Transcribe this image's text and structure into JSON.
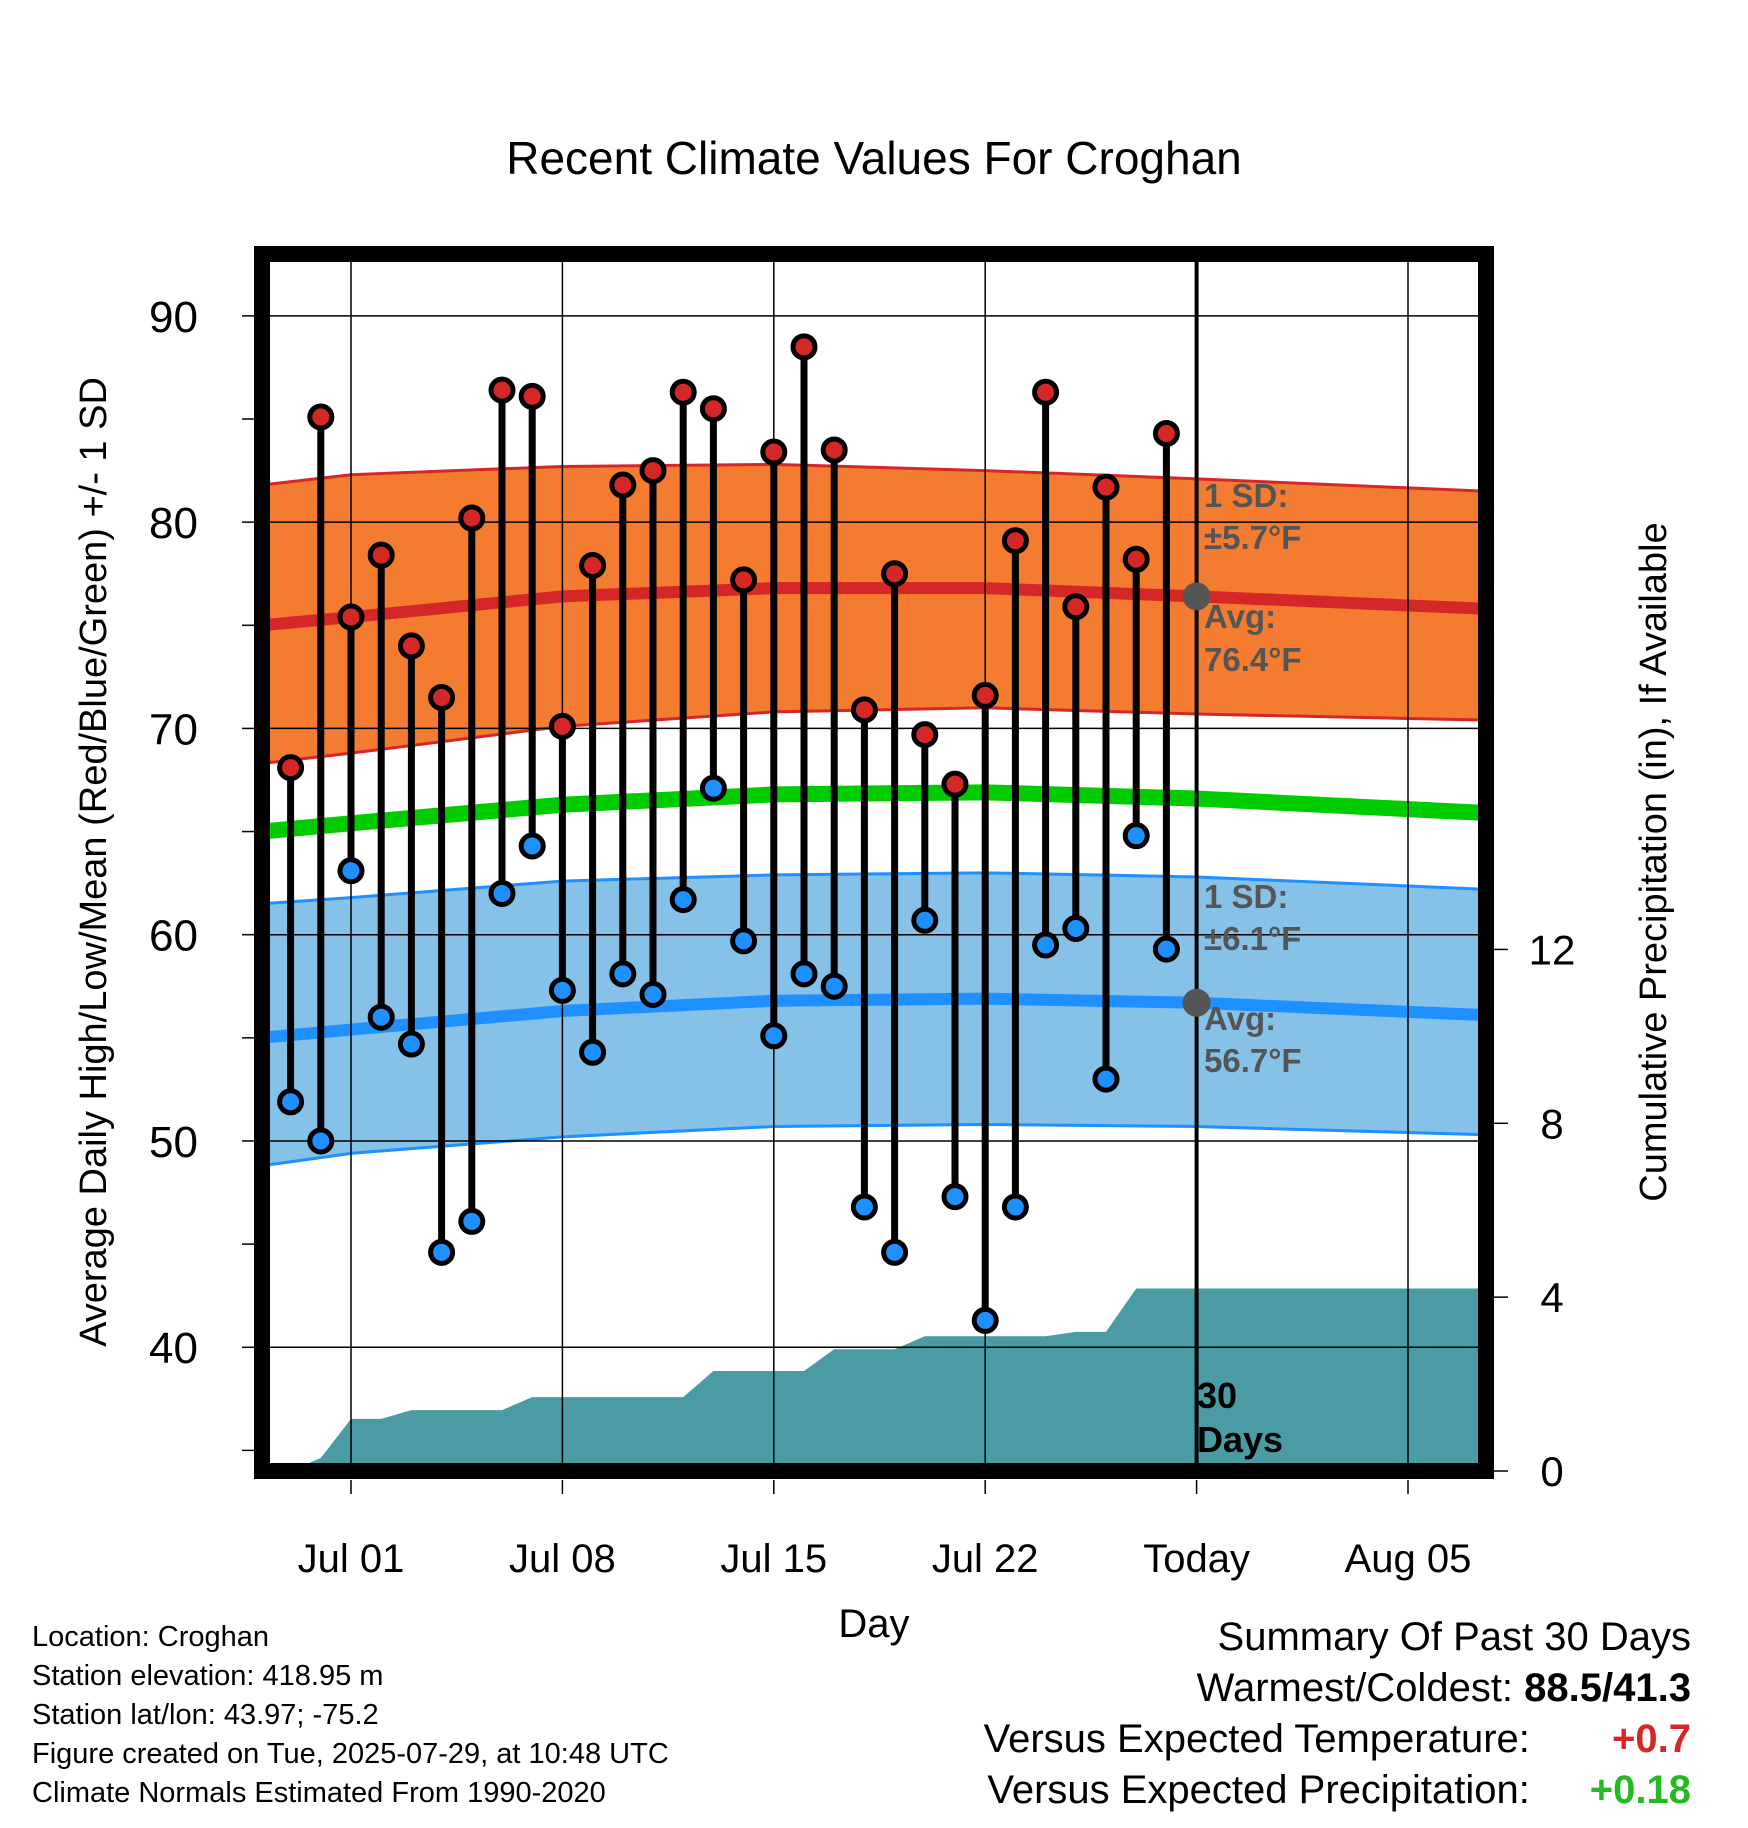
{
  "chart_data": {
    "type": "line",
    "title": "Recent Climate Values For Croghan",
    "xlabel": "Day",
    "ylabel_left": "Average Daily High/Low/Mean (Red/Blue/Green) +/- 1 SD",
    "ylabel_right": "Cumulative Precipitation (in), If Available",
    "ylim_left": [
      34,
      93
    ],
    "ylim_right": [
      0,
      28
    ],
    "left_ticks": [
      "40",
      "50",
      "60",
      "70",
      "80",
      "90"
    ],
    "right_ticks": [
      "0",
      "4",
      "8",
      "12"
    ],
    "x_ticks": [
      "Jul 01",
      "Jul 08",
      "Jul 15",
      "Jul 22",
      "Today",
      "Aug 05"
    ],
    "today_label": "30\nDays",
    "dates": [
      "Jun 29",
      "Jun 30",
      "Jul 01",
      "Jul 02",
      "Jul 03",
      "Jul 04",
      "Jul 05",
      "Jul 06",
      "Jul 07",
      "Jul 08",
      "Jul 09",
      "Jul 10",
      "Jul 11",
      "Jul 12",
      "Jul 13",
      "Jul 14",
      "Jul 15",
      "Jul 16",
      "Jul 17",
      "Jul 18",
      "Jul 19",
      "Jul 20",
      "Jul 21",
      "Jul 22",
      "Jul 23",
      "Jul 24",
      "Jul 25",
      "Jul 26",
      "Jul 27",
      "Jul 28"
    ],
    "daily_high": [
      68.1,
      85.1,
      75.4,
      78.4,
      74.0,
      71.5,
      80.2,
      86.4,
      86.1,
      70.1,
      77.9,
      81.8,
      82.5,
      86.3,
      85.5,
      77.2,
      83.4,
      88.5,
      83.5,
      70.9,
      77.5,
      69.7,
      67.3,
      71.6,
      79.1,
      86.3,
      75.9,
      81.7,
      78.2,
      84.3
    ],
    "daily_low": [
      51.9,
      50.0,
      63.1,
      56.0,
      54.7,
      44.6,
      46.1,
      62.0,
      64.3,
      57.3,
      54.3,
      58.1,
      57.1,
      61.7,
      67.1,
      59.7,
      55.1,
      58.1,
      57.5,
      46.8,
      44.6,
      60.7,
      47.3,
      41.3,
      46.8,
      59.5,
      60.3,
      53.0,
      64.8,
      59.3
    ],
    "normals_dates": [
      "Jun 28",
      "Jul 01",
      "Jul 08",
      "Jul 15",
      "Jul 22",
      "Jul 29",
      "Aug 08"
    ],
    "normal_high": [
      75.0,
      75.4,
      76.4,
      76.8,
      76.8,
      76.4,
      75.8
    ],
    "normal_low": [
      55.0,
      55.4,
      56.3,
      56.8,
      56.9,
      56.7,
      56.1
    ],
    "normal_mean": [
      65.0,
      65.4,
      66.3,
      66.8,
      66.9,
      66.6,
      65.9
    ],
    "high_sd_band": {
      "upper": [
        81.8,
        82.3,
        82.7,
        82.8,
        82.5,
        82.1,
        81.5
      ],
      "lower": [
        68.3,
        68.8,
        70.1,
        70.8,
        71.0,
        70.7,
        70.4
      ]
    },
    "low_sd_band": {
      "upper": [
        61.5,
        61.8,
        62.6,
        62.9,
        63.0,
        62.8,
        62.2
      ],
      "lower": [
        48.8,
        49.4,
        50.2,
        50.7,
        50.8,
        50.7,
        50.3
      ]
    },
    "precip_dates": [
      "Jun 28",
      "Jun 29",
      "Jun 30",
      "Jul 01",
      "Jul 02",
      "Jul 03",
      "Jul 04",
      "Jul 05",
      "Jul 06",
      "Jul 07",
      "Jul 08",
      "Jul 09",
      "Jul 10",
      "Jul 11",
      "Jul 12",
      "Jul 13",
      "Jul 14",
      "Jul 15",
      "Jul 16",
      "Jul 17",
      "Jul 18",
      "Jul 19",
      "Jul 20",
      "Jul 21",
      "Jul 22",
      "Jul 23",
      "Jul 24",
      "Jul 25",
      "Jul 26",
      "Jul 27",
      "Jul 28",
      "Jul 29",
      "Aug 08"
    ],
    "precip_cumulative": [
      0.0,
      0.0,
      0.3,
      1.2,
      1.2,
      1.4,
      1.4,
      1.4,
      1.4,
      1.7,
      1.7,
      1.7,
      1.7,
      1.7,
      1.7,
      2.3,
      2.3,
      2.3,
      2.3,
      2.8,
      2.8,
      2.8,
      3.1,
      3.1,
      3.1,
      3.1,
      3.1,
      3.2,
      3.2,
      4.2,
      4.2,
      4.2,
      4.2
    ],
    "annotations": {
      "high_sd": {
        "line1": "1 SD:",
        "line2": "±5.7°F"
      },
      "high_avg": {
        "line1": "Avg:",
        "line2": "76.4°F"
      },
      "low_sd": {
        "line1": "1 SD:",
        "line2": "±6.1°F"
      },
      "low_avg": {
        "line1": "Avg:",
        "line2": "56.7°F"
      }
    },
    "grid": true
  },
  "colors": {
    "high_band": "#f47c30",
    "high_line": "#d62728",
    "low_band": "#86c1e8",
    "low_line": "#1e90ff",
    "mean_line": "#00cc00",
    "precip": "#4a9ba3",
    "high_marker": "#d62728",
    "low_marker": "#1e90ff",
    "annotation": "#555555"
  },
  "footer": {
    "location": "Location: Croghan",
    "elevation": "Station elevation: 418.95 m",
    "latlon": "Station lat/lon: 43.97; -75.2",
    "created": "Figure created on Tue, 2025-07-29, at 10:48 UTC",
    "normals": "Climate Normals Estimated From 1990-2020"
  },
  "summary": {
    "title": "Summary Of Past 30 Days",
    "warm_cold_label": "Warmest/Coldest:",
    "warm_cold_value": "88.5/41.3",
    "temp_label": "Versus Expected Temperature:",
    "temp_value": "+0.7",
    "precip_label": "Versus Expected Precipitation:",
    "precip_value": "+0.18"
  }
}
